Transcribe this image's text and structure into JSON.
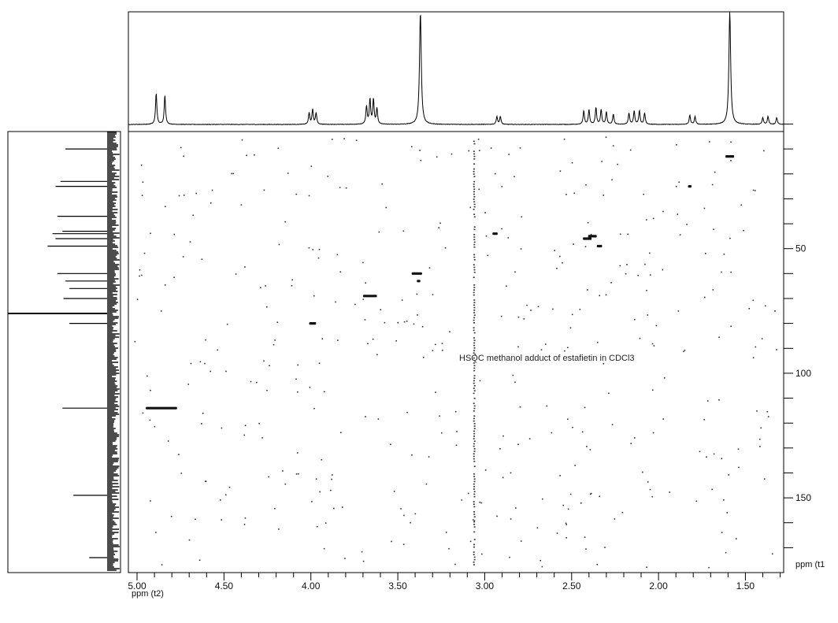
{
  "chart_data": {
    "type": "heatmap",
    "title": "",
    "annotation": "HSQC methanol adduct of estafietin in CDCl3",
    "x_axis": {
      "label": "ppm (t2)",
      "range": [
        5.05,
        1.28
      ],
      "ticks": [
        5.0,
        4.5,
        4.0,
        3.5,
        3.0,
        2.5,
        2.0,
        1.5
      ],
      "tick_labels": [
        "5.00",
        "4.50",
        "4.00",
        "3.50",
        "3.00",
        "2.50",
        "2.00",
        "1.50"
      ]
    },
    "y_axis": {
      "label": "ppm (t1",
      "range": [
        3,
        180
      ],
      "ticks": [
        50,
        100,
        150
      ],
      "tick_labels": [
        "50",
        "100",
        "150"
      ],
      "minor_ticks": [
        0,
        10,
        20,
        30,
        40,
        60,
        70,
        80,
        90,
        110,
        120,
        130,
        140,
        160,
        170
      ]
    },
    "grid": false,
    "series": [
      {
        "role": "cross_peaks",
        "points": [
          {
            "x": 4.86,
            "y": 114,
            "width": 0.18
          },
          {
            "x": 3.66,
            "y": 69,
            "width": 0.08
          },
          {
            "x": 3.99,
            "y": 80,
            "width": 0.04
          },
          {
            "x": 3.39,
            "y": 60,
            "width": 0.06
          },
          {
            "x": 3.38,
            "y": 63,
            "width": 0.02
          },
          {
            "x": 2.94,
            "y": 44,
            "width": 0.03
          },
          {
            "x": 2.41,
            "y": 46,
            "width": 0.05
          },
          {
            "x": 2.38,
            "y": 45,
            "width": 0.05
          },
          {
            "x": 2.34,
            "y": 49,
            "width": 0.03
          },
          {
            "x": 1.82,
            "y": 25,
            "width": 0.02
          },
          {
            "x": 1.59,
            "y": 13,
            "width": 0.05
          }
        ]
      },
      {
        "role": "t1_noise_column",
        "x": 3.06
      },
      {
        "role": "proton_projection_top",
        "peaks": [
          {
            "ppm": 4.89,
            "rel": 0.28
          },
          {
            "ppm": 4.84,
            "rel": 0.26
          },
          {
            "ppm": 4.01,
            "rel": 0.1
          },
          {
            "ppm": 3.99,
            "rel": 0.13
          },
          {
            "ppm": 3.97,
            "rel": 0.1
          },
          {
            "ppm": 3.68,
            "rel": 0.16
          },
          {
            "ppm": 3.66,
            "rel": 0.22
          },
          {
            "ppm": 3.64,
            "rel": 0.22
          },
          {
            "ppm": 3.62,
            "rel": 0.14
          },
          {
            "ppm": 3.37,
            "rel": 1.0
          },
          {
            "ppm": 2.93,
            "rel": 0.07
          },
          {
            "ppm": 2.91,
            "rel": 0.07
          },
          {
            "ppm": 2.43,
            "rel": 0.12
          },
          {
            "ppm": 2.4,
            "rel": 0.13
          },
          {
            "ppm": 2.36,
            "rel": 0.15
          },
          {
            "ppm": 2.33,
            "rel": 0.13
          },
          {
            "ppm": 2.3,
            "rel": 0.11
          },
          {
            "ppm": 2.26,
            "rel": 0.09
          },
          {
            "ppm": 2.17,
            "rel": 0.1
          },
          {
            "ppm": 2.14,
            "rel": 0.12
          },
          {
            "ppm": 2.11,
            "rel": 0.12
          },
          {
            "ppm": 2.08,
            "rel": 0.1
          },
          {
            "ppm": 1.82,
            "rel": 0.08
          },
          {
            "ppm": 1.79,
            "rel": 0.07
          },
          {
            "ppm": 1.59,
            "rel": 1.0
          },
          {
            "ppm": 1.4,
            "rel": 0.06
          },
          {
            "ppm": 1.37,
            "rel": 0.07
          },
          {
            "ppm": 1.32,
            "rel": 0.06
          }
        ]
      },
      {
        "role": "carbon_projection_left",
        "peaks": [
          {
            "ppm": 10,
            "rel": 0.42
          },
          {
            "ppm": 23,
            "rel": 0.47
          },
          {
            "ppm": 25,
            "rel": 0.52
          },
          {
            "ppm": 37,
            "rel": 0.5
          },
          {
            "ppm": 43,
            "rel": 0.45
          },
          {
            "ppm": 44,
            "rel": 0.55
          },
          {
            "ppm": 46,
            "rel": 0.52
          },
          {
            "ppm": 49,
            "rel": 0.6
          },
          {
            "ppm": 60,
            "rel": 0.5
          },
          {
            "ppm": 63,
            "rel": 0.42
          },
          {
            "ppm": 66,
            "rel": 0.38
          },
          {
            "ppm": 70,
            "rel": 0.44
          },
          {
            "ppm": 76,
            "rel": 1.0
          },
          {
            "ppm": 80,
            "rel": 0.38
          },
          {
            "ppm": 114,
            "rel": 0.45
          },
          {
            "ppm": 149,
            "rel": 0.34
          },
          {
            "ppm": 174,
            "rel": 0.18
          }
        ]
      }
    ]
  }
}
